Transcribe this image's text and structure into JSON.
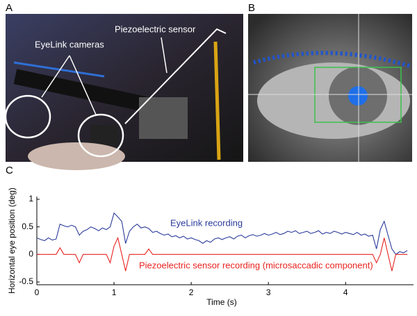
{
  "panels": [
    {
      "label": "A",
      "annotations": [
        "EyeLink cameras",
        "Piezoelectric sensor"
      ]
    },
    {
      "label": "B"
    },
    {
      "label": "C"
    }
  ],
  "chart_data": {
    "type": "line",
    "xlabel": "Time (s)",
    "ylabel": "Horizontal eye position (deg)",
    "xlim": [
      0,
      4.88
    ],
    "xticks": [
      0,
      1,
      2,
      3,
      4
    ],
    "ylim": [
      -0.55,
      1.05
    ],
    "yticks": [
      -0.5,
      0,
      0.5,
      1
    ],
    "x": [
      0,
      0.05,
      0.1,
      0.15,
      0.2,
      0.25,
      0.3,
      0.35,
      0.4,
      0.45,
      0.5,
      0.55,
      0.6,
      0.65,
      0.7,
      0.75,
      0.8,
      0.85,
      0.9,
      0.95,
      1,
      1.05,
      1.1,
      1.15,
      1.2,
      1.25,
      1.3,
      1.35,
      1.4,
      1.45,
      1.5,
      1.55,
      1.6,
      1.65,
      1.7,
      1.75,
      1.8,
      1.85,
      1.9,
      1.95,
      2,
      2.05,
      2.1,
      2.15,
      2.2,
      2.25,
      2.3,
      2.35,
      2.4,
      2.45,
      2.5,
      2.55,
      2.6,
      2.65,
      2.7,
      2.75,
      2.8,
      2.85,
      2.9,
      2.95,
      3,
      3.05,
      3.1,
      3.15,
      3.2,
      3.25,
      3.3,
      3.35,
      3.4,
      3.45,
      3.5,
      3.55,
      3.6,
      3.65,
      3.7,
      3.75,
      3.8,
      3.85,
      3.9,
      3.95,
      4,
      4.05,
      4.1,
      4.15,
      4.2,
      4.25,
      4.3,
      4.35,
      4.4,
      4.45,
      4.5,
      4.55,
      4.6,
      4.65,
      4.7,
      4.75,
      4.8
    ],
    "series": [
      {
        "name": "EyeLink recording",
        "color": "#2b3b9c",
        "values": [
          0.3,
          0.27,
          0.25,
          0.3,
          0.26,
          0.28,
          0.55,
          0.52,
          0.5,
          0.53,
          0.5,
          0.35,
          0.42,
          0.45,
          0.5,
          0.47,
          0.43,
          0.48,
          0.45,
          0.5,
          0.75,
          0.68,
          0.6,
          0.2,
          0.42,
          0.5,
          0.55,
          0.48,
          0.5,
          0.47,
          0.4,
          0.42,
          0.38,
          0.35,
          0.37,
          0.32,
          0.34,
          0.3,
          0.33,
          0.28,
          0.3,
          0.27,
          0.25,
          0.2,
          0.25,
          0.22,
          0.28,
          0.3,
          0.27,
          0.3,
          0.32,
          0.28,
          0.33,
          0.35,
          0.3,
          0.34,
          0.36,
          0.33,
          0.35,
          0.38,
          0.35,
          0.37,
          0.4,
          0.36,
          0.38,
          0.42,
          0.4,
          0.43,
          0.38,
          0.4,
          0.42,
          0.38,
          0.4,
          0.43,
          0.37,
          0.4,
          0.38,
          0.42,
          0.4,
          0.37,
          0.4,
          0.38,
          0.36,
          0.4,
          0.35,
          0.37,
          0.33,
          0.35,
          0.1,
          0.45,
          0.6,
          0.35,
          0.1,
          0.0,
          0.05,
          0.03,
          0.07
        ]
      },
      {
        "name": "Piezoelectric sensor recording (microsaccadic component)",
        "color": "#e8231f",
        "values": [
          0,
          0,
          0,
          0,
          0,
          0,
          0.12,
          0,
          0,
          0,
          0,
          -0.15,
          0,
          0,
          0,
          0,
          0,
          0,
          0,
          -0.15,
          0.15,
          0.3,
          0,
          -0.3,
          0,
          0,
          0,
          0,
          0,
          0.1,
          0,
          0,
          0,
          0,
          0,
          0,
          0,
          0,
          0,
          0,
          0,
          0,
          0,
          0,
          0,
          0,
          0,
          0,
          0,
          0,
          0,
          0,
          0,
          0,
          0,
          0,
          0,
          0,
          0,
          0,
          0,
          0,
          0,
          0,
          0,
          0,
          0,
          0,
          0,
          0,
          0,
          0,
          0,
          0,
          0,
          0,
          0,
          0,
          0,
          0,
          0,
          0,
          0,
          0,
          0,
          0,
          0,
          0,
          -0.15,
          0,
          0.3,
          0,
          -0.3,
          0,
          0,
          0,
          0
        ]
      }
    ]
  }
}
